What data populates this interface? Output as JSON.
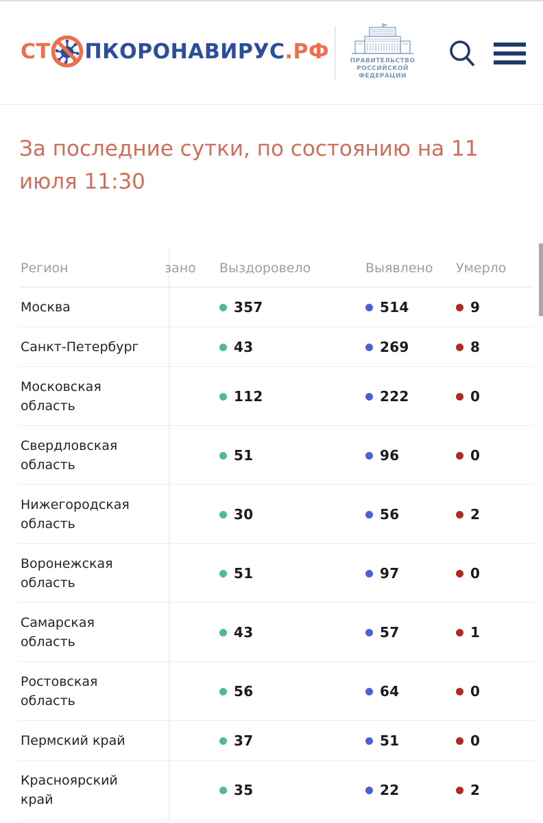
{
  "header": {
    "logo": {
      "prefix": "СТ",
      "middle": "ПКОРОНАВИРУС",
      "suffix": ".РФ",
      "orange": "#ed6f4e",
      "blue": "#2c4d9c"
    },
    "government_emblem": {
      "lines": [
        "ПРАВИТЕЛЬСТВО",
        "РОССИЙСКОЙ",
        "ФЕДЕРАЦИИ"
      ],
      "color": "#7e98bb"
    },
    "icon_color": "#1d3a6b"
  },
  "heading": {
    "text": "За последние сутки, по состоянию на 11 июля 11:30",
    "color": "#d06e5a"
  },
  "table": {
    "columns": {
      "region": "Регион",
      "cut_fragment": "зано",
      "recovered": "Выздоровело",
      "detected": "Выявлено",
      "died": "Умерло"
    },
    "dot_colors": {
      "recovered": "#4db9a1",
      "detected": "#4762d3",
      "died": "#b3291f"
    },
    "rows": [
      {
        "region": "Москва",
        "recovered": "357",
        "detected": "514",
        "died": "9"
      },
      {
        "region": "Санкт-Петербург",
        "recovered": "43",
        "detected": "269",
        "died": "8"
      },
      {
        "region": "Московская область",
        "recovered": "112",
        "detected": "222",
        "died": "0"
      },
      {
        "region": "Свердловская область",
        "recovered": "51",
        "detected": "96",
        "died": "0"
      },
      {
        "region": "Нижегородская область",
        "recovered": "30",
        "detected": "56",
        "died": "2"
      },
      {
        "region": "Воронежская область",
        "recovered": "51",
        "detected": "97",
        "died": "0"
      },
      {
        "region": "Самарская область",
        "recovered": "43",
        "detected": "57",
        "died": "1"
      },
      {
        "region": "Ростовская область",
        "recovered": "56",
        "detected": "64",
        "died": "0"
      },
      {
        "region": "Пермский край",
        "recovered": "37",
        "detected": "51",
        "died": "0"
      },
      {
        "region": "Красноярский край",
        "recovered": "35",
        "detected": "22",
        "died": "2"
      }
    ]
  }
}
